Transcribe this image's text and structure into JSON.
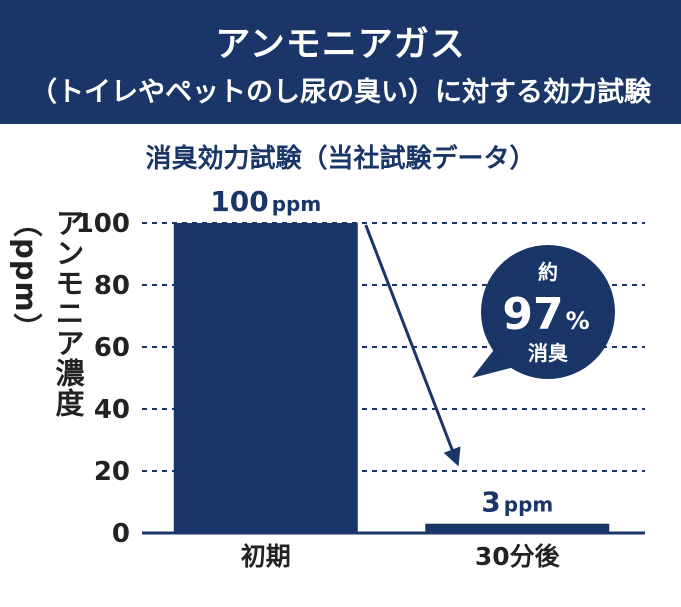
{
  "header": {
    "title": "アンモニアガス",
    "subtitle": "（トイレやペットのし尿の臭い）に対する効力試験"
  },
  "chart_data": {
    "type": "bar",
    "title": "消臭効力試験（当社試験データ）",
    "ylabel": "アンモニア濃度（ppm）",
    "categories": [
      "初期",
      "30分後"
    ],
    "values": [
      100,
      3
    ],
    "data_labels": [
      {
        "num": "100",
        "unit": "ppm"
      },
      {
        "num": "3",
        "unit": "ppm"
      }
    ],
    "ylim": [
      0,
      100
    ],
    "yticks": [
      0,
      20,
      40,
      60,
      80,
      100
    ],
    "grid": true,
    "bar_color": "#1a3567",
    "annotation": {
      "line1": "約",
      "number": "97",
      "percent": "%",
      "line3": "消臭"
    }
  }
}
